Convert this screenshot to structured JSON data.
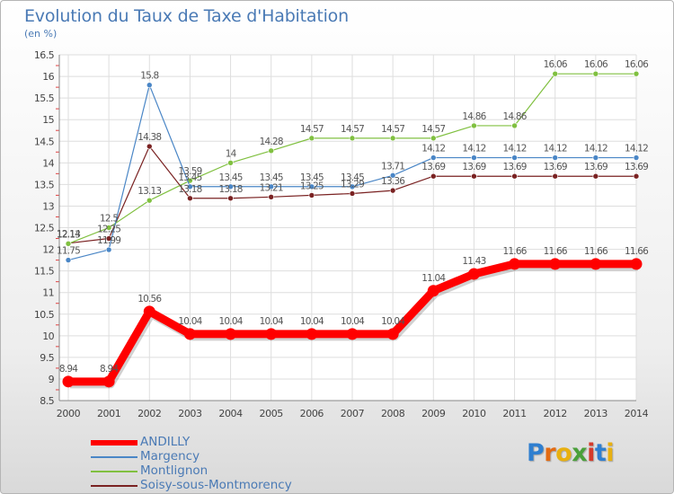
{
  "chart_data": {
    "type": "line",
    "title": "Evolution du Taux de Taxe d'Habitation",
    "subtitle": "(en %)",
    "xlabel": "",
    "ylabel": "",
    "categories": [
      "2000",
      "2001",
      "2002",
      "2003",
      "2004",
      "2005",
      "2006",
      "2007",
      "2008",
      "2009",
      "2010",
      "2011",
      "2012",
      "2013",
      "2014"
    ],
    "ylim": [
      8.5,
      16.5
    ],
    "yticks": [
      "8.5",
      "9",
      "9.5",
      "10",
      "10.5",
      "11",
      "11.5",
      "12",
      "12.5",
      "13",
      "13.5",
      "14",
      "14.5",
      "15",
      "15.5",
      "16",
      "16.5"
    ],
    "grid": true,
    "legend_position": "bottom-left",
    "series": [
      {
        "name": "ANDILLY",
        "color": "#ff0000",
        "emphasis": true,
        "values": [
          8.94,
          8.94,
          10.56,
          10.04,
          10.04,
          10.04,
          10.04,
          10.04,
          10.04,
          11.04,
          11.43,
          11.66,
          11.66,
          11.66,
          11.66
        ],
        "labels": [
          "8.94",
          "8.94",
          "10.56",
          "10.04",
          "10.04",
          "10.04",
          "10.04",
          "10.04",
          "10.04",
          "11.04",
          "11.43",
          "11.66",
          "11.66",
          "11.66",
          "11.66"
        ]
      },
      {
        "name": "Margency",
        "color": "#4a86c6",
        "values": [
          11.75,
          11.99,
          15.8,
          13.45,
          13.45,
          13.45,
          13.45,
          13.45,
          13.71,
          14.12,
          14.12,
          14.12,
          14.12,
          14.12,
          14.12
        ],
        "labels": [
          "11.75",
          "11.99",
          "15.8",
          "13.45",
          "13.45",
          "13.45",
          "13.45",
          "13.45",
          "13.71",
          "14.12",
          "14.12",
          "14.12",
          "14.12",
          "14.12",
          "14.12"
        ]
      },
      {
        "name": "Montlignon",
        "color": "#80c040",
        "values": [
          12.13,
          12.5,
          13.13,
          13.59,
          14,
          14.28,
          14.57,
          14.57,
          14.57,
          14.57,
          14.86,
          14.86,
          16.06,
          16.06,
          16.06
        ],
        "labels": [
          "12.13",
          "12.5",
          "13.13",
          "13.59",
          "14",
          "14.28",
          "14.57",
          "14.57",
          "14.57",
          "14.57",
          "14.86",
          "14.86",
          "16.06",
          "16.06",
          "16.06"
        ]
      },
      {
        "name": "Soisy-sous-Montmorency",
        "color": "#7a2222",
        "values": [
          12.14,
          12.25,
          14.38,
          13.18,
          13.18,
          13.21,
          13.25,
          13.29,
          13.36,
          13.69,
          13.69,
          13.69,
          13.69,
          13.69,
          13.69
        ],
        "labels": [
          "12.14",
          "12.25",
          "14.38",
          "13.18",
          "13.18",
          "13.21",
          "13.25",
          "13.29",
          "13.36",
          "13.69",
          "13.69",
          "13.69",
          "13.69",
          "13.69",
          "13.69"
        ]
      }
    ]
  },
  "logo": {
    "letters": [
      "P",
      "r",
      "o",
      "x",
      "i",
      "t",
      "i"
    ],
    "colors": [
      "#2f7fd0",
      "#e36b12",
      "#e8b010",
      "#4aa03a",
      "#d43a2a",
      "#2f7fd0",
      "#e8b010"
    ]
  }
}
